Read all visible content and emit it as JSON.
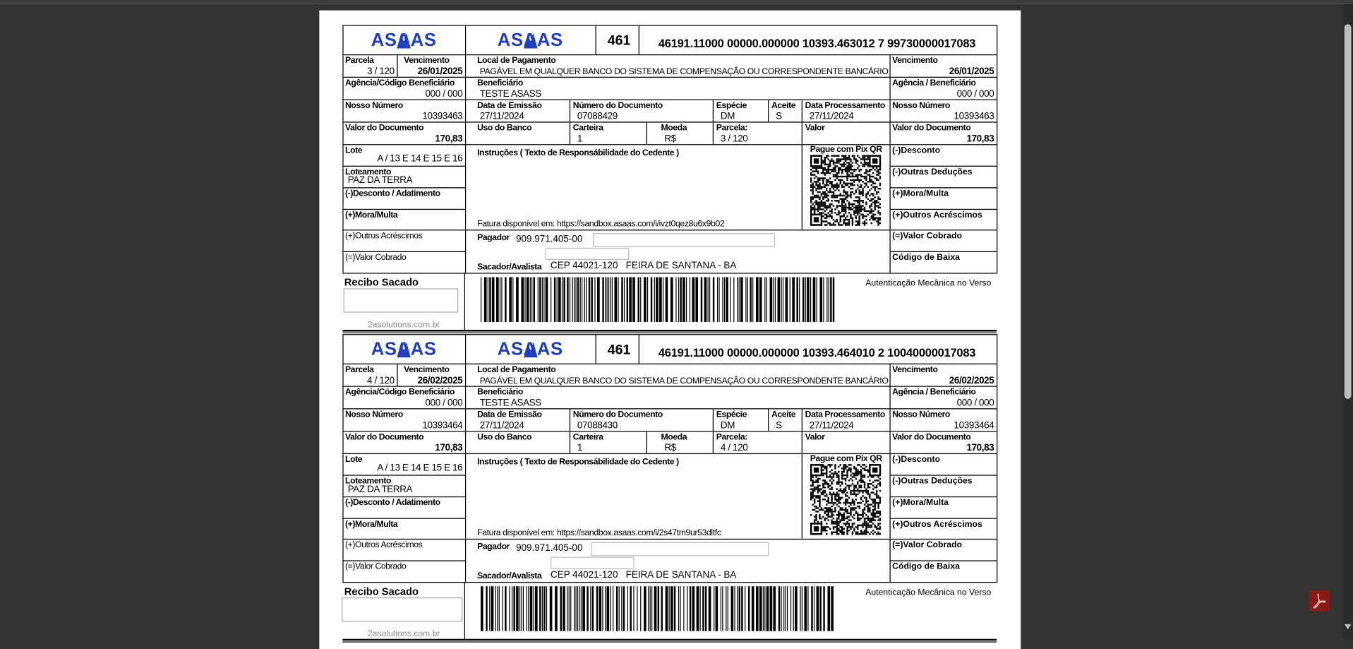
{
  "labels": {
    "parcela": "Parcela",
    "vencimento": "Vencimento",
    "local_pagamento": "Local de Pagamento",
    "agencia_codigo": "Agência/Código Beneficiário",
    "beneficiario": "Beneficiário",
    "agencia_beneficiario": "Agência / Beneficiário",
    "nosso_numero": "Nosso Número",
    "data_emissao": "Data de Emissão",
    "numero_documento": "Número do Documento",
    "especie": "Espécie",
    "aceite": "Aceite",
    "data_processamento": "Data Processamento",
    "valor_documento": "Valor do Documento",
    "uso_banco": "Uso do Banco",
    "carteira": "Carteira",
    "moeda": "Moeda",
    "parcela_colon": "Parcela:",
    "valor": "Valor",
    "lote": "Lote",
    "loteamento": "Loteamento",
    "desconto_abatimento": "(-)Desconto / Adatimento",
    "mora_multa": "(+)Mora/Multa",
    "outros_acrescimos": "(+)Outros Acréscimos",
    "valor_cobrado": "(=)Valor Cobrado",
    "instrucoes": "Instruções ( Texto de Responsábilidade do Cedente )",
    "pix": "Pague com Pix QR",
    "desconto": "(-)Desconto",
    "outras_deducoes": "(-)Outras Deduções",
    "codigo_baixa": "Código de Baixa",
    "pagador": "Pagador",
    "sacador": "Sacador/Avalista",
    "recibo_sacado": "Recibo Sacado",
    "autenticacao": "Autenticação Mecânica no Verso"
  },
  "brand_color": "#1f3fbf",
  "boletos": [
    {
      "logo": "ASAAS",
      "bank_code": "461",
      "digitable_line": "46191.11000 00000.000000 10393.463012 7 99730000017083",
      "parcela": "3 / 120",
      "vencimento": "26/01/2025",
      "local_pagamento": "PAGÁVEL EM QUALQUER BANCO DO SISTEMA DE COMPENSAÇÃO OU CORRESPONDENTE BANCÁRIO",
      "agencia": "000 / 000",
      "beneficiario": "TESTE ASASS",
      "nosso_numero": "10393463",
      "data_emissao": "27/11/2024",
      "numero_documento": "07088429",
      "especie": "DM",
      "aceite": "S",
      "data_processamento": "27/11/2024",
      "valor_documento": "170,83",
      "carteira": "1",
      "moeda": "R$",
      "lote": "A / 13 E 14 E 15 E 16",
      "loteamento": "PAZ DA TERRA",
      "fatura": "Fatura disponível em: https://sandbox.asaas.com/i/ivzt0qez8u6x9b02",
      "pagador": "909.971.405-00",
      "sacador": "CEP 44021-120   FEIRA DE SANTANA - BA",
      "footer": "2asolutions.com.br"
    },
    {
      "logo": "ASAAS",
      "bank_code": "461",
      "digitable_line": "46191.11000 00000.000000 10393.464010 2 10040000017083",
      "parcela": "4 / 120",
      "vencimento": "26/02/2025",
      "local_pagamento": "PAGÁVEL EM QUALQUER BANCO DO SISTEMA DE COMPENSAÇÃO OU CORRESPONDENTE BANCÁRIO",
      "agencia": "000 / 000",
      "beneficiario": "TESTE ASASS",
      "nosso_numero": "10393464",
      "data_emissao": "27/11/2024",
      "numero_documento": "07088430",
      "especie": "DM",
      "aceite": "S",
      "data_processamento": "27/11/2024",
      "valor_documento": "170,83",
      "carteira": "1",
      "moeda": "R$",
      "lote": "A / 13 E 14 E 15 E 16",
      "loteamento": "PAZ DA TERRA",
      "fatura": "Fatura disponível em: https://sandbox.asaas.com/i/2s47tm9ur53dltfc",
      "pagador": "909.971.405-00",
      "sacador": "CEP 44021-120   FEIRA DE SANTANA - BA",
      "footer": "2asolutions.com.br"
    }
  ]
}
